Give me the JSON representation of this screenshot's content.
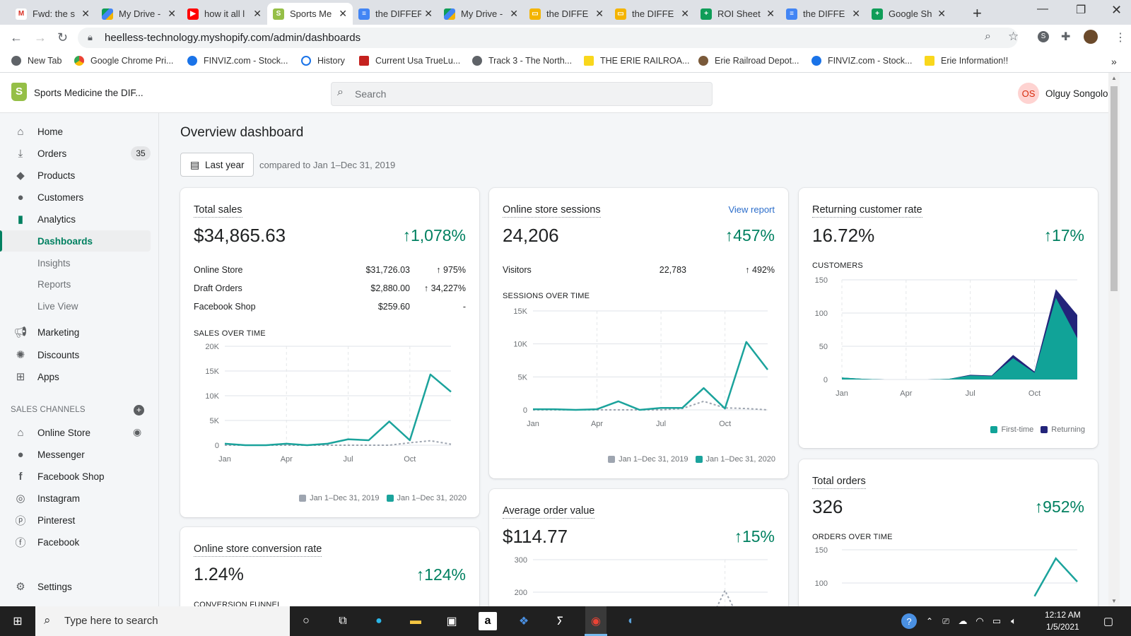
{
  "browser": {
    "tabs": [
      {
        "label": "Fwd: the s",
        "icon": "gmail-icon"
      },
      {
        "label": "My Drive - ",
        "icon": "drive-icon"
      },
      {
        "label": "how it all l",
        "icon": "youtube-icon"
      },
      {
        "label": "Sports Me",
        "icon": "shopify-icon"
      },
      {
        "label": "the DIFFER",
        "icon": "docs-icon"
      },
      {
        "label": "My Drive -",
        "icon": "drive-icon"
      },
      {
        "label": "the DIFFE",
        "icon": "slides-icon"
      },
      {
        "label": "the DIFFE",
        "icon": "slides-icon"
      },
      {
        "label": "ROI Sheet",
        "icon": "sheets-icon"
      },
      {
        "label": "the DIFFE",
        "icon": "docs-icon"
      },
      {
        "label": "Google Sh",
        "icon": "sheets-icon"
      }
    ],
    "url": "heelless-technology.myshopify.com/admin/dashboards",
    "bookmarks": [
      "New Tab",
      "Google Chrome Pri...",
      "FINVIZ.com - Stock...",
      "History",
      "Current Usa TrueLu...",
      "Track 3 - The North...",
      "THE ERIE RAILROA...",
      "Erie Railroad Depot...",
      "FINVIZ.com - Stock...",
      "Erie Information!!"
    ],
    "overflow": "»"
  },
  "header": {
    "store_name": "Sports Medicine the DIF...",
    "search_placeholder": "Search",
    "avatar_initials": "OS",
    "user_name": "Olguy Songolo"
  },
  "sidebar": {
    "items": [
      {
        "label": "Home"
      },
      {
        "label": "Orders",
        "badge": "35"
      },
      {
        "label": "Products"
      },
      {
        "label": "Customers"
      },
      {
        "label": "Analytics"
      },
      {
        "label": "Dashboards"
      },
      {
        "label": "Insights"
      },
      {
        "label": "Reports"
      },
      {
        "label": "Live View"
      },
      {
        "label": "Marketing"
      },
      {
        "label": "Discounts"
      },
      {
        "label": "Apps"
      }
    ],
    "channels_header": "SALES CHANNELS",
    "channels": [
      {
        "label": "Online Store"
      },
      {
        "label": "Messenger"
      },
      {
        "label": "Facebook Shop"
      },
      {
        "label": "Instagram"
      },
      {
        "label": "Pinterest"
      },
      {
        "label": "Facebook"
      }
    ],
    "settings": "Settings"
  },
  "main": {
    "title": "Overview dashboard",
    "date_button": "Last year",
    "compare_text": "compared to Jan 1–Dec 31, 2019",
    "total_sales": {
      "title": "Total sales",
      "value": "$34,865.63",
      "change": "↑1,078%",
      "rows": [
        {
          "label": "Online Store",
          "value": "$31,726.03",
          "change": "↑ 975%"
        },
        {
          "label": "Draft Orders",
          "value": "$2,880.00",
          "change": "↑ 34,227%"
        },
        {
          "label": "Facebook Shop",
          "value": "$259.60",
          "change": "-"
        }
      ],
      "chart_label": "SALES OVER TIME"
    },
    "sessions": {
      "title": "Online store sessions",
      "link": "View report",
      "value": "24,206",
      "change": "↑457%",
      "row": {
        "label": "Visitors",
        "value": "22,783",
        "change": "↑ 492%"
      },
      "chart_label": "SESSIONS OVER TIME"
    },
    "returning": {
      "title": "Returning customer rate",
      "value": "16.72%",
      "change": "↑17%",
      "chart_label": "CUSTOMERS"
    },
    "conversion": {
      "title": "Online store conversion rate",
      "value": "1.24%",
      "change": "↑124%",
      "chart_label": "CONVERSION FUNNEL"
    },
    "aov": {
      "title": "Average order value",
      "value": "$114.77",
      "change": "↑15%"
    },
    "orders": {
      "title": "Total orders",
      "value": "326",
      "change": "↑952%",
      "chart_label": "ORDERS OVER TIME"
    },
    "legend_2019": "Jan 1–Dec 31, 2019",
    "legend_2020": "Jan 1–Dec 31, 2020",
    "legend_first": "First-time",
    "legend_returning": "Returning"
  },
  "taskbar": {
    "search_placeholder": "Type here to search",
    "time": "12:12 AM",
    "date": "1/5/2021"
  },
  "colors": {
    "accent": "#008060",
    "line_2020": "#1ba39c",
    "line_2019": "#9ea5b0",
    "first_time": "#11a398",
    "returning": "#23247a"
  },
  "chart_data": [
    {
      "type": "line",
      "title": "SALES OVER TIME",
      "x": [
        "Jan",
        "Feb",
        "Mar",
        "Apr",
        "May",
        "Jun",
        "Jul",
        "Aug",
        "Sep",
        "Oct",
        "Nov",
        "Dec"
      ],
      "xticks": [
        "Jan",
        "Apr",
        "Jul",
        "Oct"
      ],
      "yticks": [
        "0",
        "5K",
        "10K",
        "15K",
        "20K"
      ],
      "ylim": [
        0,
        20000
      ],
      "series": [
        {
          "name": "Jan 1–Dec 31, 2020",
          "values": [
            300,
            0,
            0,
            300,
            0,
            300,
            1200,
            1000,
            4800,
            1000,
            14300,
            10800
          ]
        },
        {
          "name": "Jan 1–Dec 31, 2019",
          "values": [
            0,
            0,
            0,
            0,
            0,
            0,
            0,
            0,
            0,
            500,
            900,
            200
          ]
        }
      ]
    },
    {
      "type": "line",
      "title": "SESSIONS OVER TIME",
      "x": [
        "Jan",
        "Feb",
        "Mar",
        "Apr",
        "May",
        "Jun",
        "Jul",
        "Aug",
        "Sep",
        "Oct",
        "Nov",
        "Dec"
      ],
      "xticks": [
        "Jan",
        "Apr",
        "Jul",
        "Oct"
      ],
      "yticks": [
        "0",
        "5K",
        "10K",
        "15K"
      ],
      "ylim": [
        0,
        15000
      ],
      "series": [
        {
          "name": "Jan 1–Dec 31, 2020",
          "values": [
            100,
            100,
            0,
            100,
            1300,
            0,
            300,
            300,
            3300,
            200,
            10300,
            6100
          ]
        },
        {
          "name": "Jan 1–Dec 31, 2019",
          "values": [
            0,
            0,
            0,
            0,
            0,
            0,
            0,
            200,
            1300,
            300,
            200,
            0
          ]
        }
      ]
    },
    {
      "type": "area",
      "title": "CUSTOMERS",
      "x": [
        "Jan",
        "Feb",
        "Mar",
        "Apr",
        "May",
        "Jun",
        "Jul",
        "Aug",
        "Sep",
        "Oct",
        "Nov",
        "Dec"
      ],
      "xticks": [
        "Jan",
        "Apr",
        "Jul",
        "Oct"
      ],
      "yticks": [
        "0",
        "50",
        "100",
        "150"
      ],
      "ylim": [
        0,
        150
      ],
      "series": [
        {
          "name": "First-time",
          "values": [
            3,
            1,
            0,
            0,
            0,
            1,
            6,
            5,
            32,
            10,
            123,
            62
          ]
        },
        {
          "name": "Returning",
          "values": [
            0,
            0,
            0,
            0,
            0,
            0,
            1,
            1,
            5,
            2,
            13,
            35
          ]
        }
      ]
    },
    {
      "type": "line",
      "title": "ORDERS OVER TIME",
      "yticks": [
        "100",
        "150"
      ],
      "ylim": [
        100,
        150
      ],
      "series": [
        {
          "name": "Jan 1–Dec 31, 2020",
          "values": [
            null,
            null,
            null,
            null,
            null,
            null,
            null,
            null,
            null,
            80,
            137,
            102
          ]
        }
      ]
    },
    {
      "type": "line",
      "title": "Average order value",
      "yticks": [
        "200",
        "300"
      ],
      "ylim": [
        200,
        300
      ],
      "series": [
        {
          "name": "Jan 1–Dec 31, 2019",
          "values": [
            null,
            null,
            null,
            null,
            null,
            null,
            null,
            null,
            null,
            205,
            null,
            null
          ]
        }
      ]
    }
  ]
}
